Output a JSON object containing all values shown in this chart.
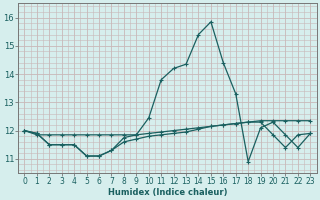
{
  "xlabel": "Humidex (Indice chaleur)",
  "xlim": [
    -0.5,
    23.5
  ],
  "ylim": [
    10.5,
    16.5
  ],
  "yticks": [
    11,
    12,
    13,
    14,
    15,
    16
  ],
  "xticks": [
    0,
    1,
    2,
    3,
    4,
    5,
    6,
    7,
    8,
    9,
    10,
    11,
    12,
    13,
    14,
    15,
    16,
    17,
    18,
    19,
    20,
    21,
    22,
    23
  ],
  "bg_color": "#d6eeed",
  "grid_color": "#c8b8b8",
  "line_color": "#1a6060",
  "curves": [
    [
      12.0,
      11.9,
      11.5,
      11.5,
      11.5,
      11.1,
      11.1,
      11.3,
      11.6,
      11.7,
      11.8,
      11.85,
      11.9,
      11.95,
      12.05,
      12.15,
      12.2,
      12.25,
      12.3,
      12.3,
      11.85,
      11.4,
      11.85,
      11.9
    ],
    [
      12.0,
      11.9,
      11.5,
      11.5,
      11.5,
      11.1,
      11.1,
      11.3,
      11.75,
      11.85,
      12.45,
      13.8,
      14.2,
      14.35,
      15.4,
      15.85,
      14.4,
      13.3,
      10.9,
      12.1,
      12.3,
      11.85,
      11.4,
      11.9
    ],
    [
      12.0,
      11.85,
      11.85,
      11.85,
      11.85,
      11.85,
      11.85,
      11.85,
      11.85,
      11.85,
      11.9,
      11.95,
      12.0,
      12.05,
      12.1,
      12.15,
      12.2,
      12.25,
      12.3,
      12.35,
      12.35,
      12.35,
      12.35,
      12.35
    ]
  ]
}
